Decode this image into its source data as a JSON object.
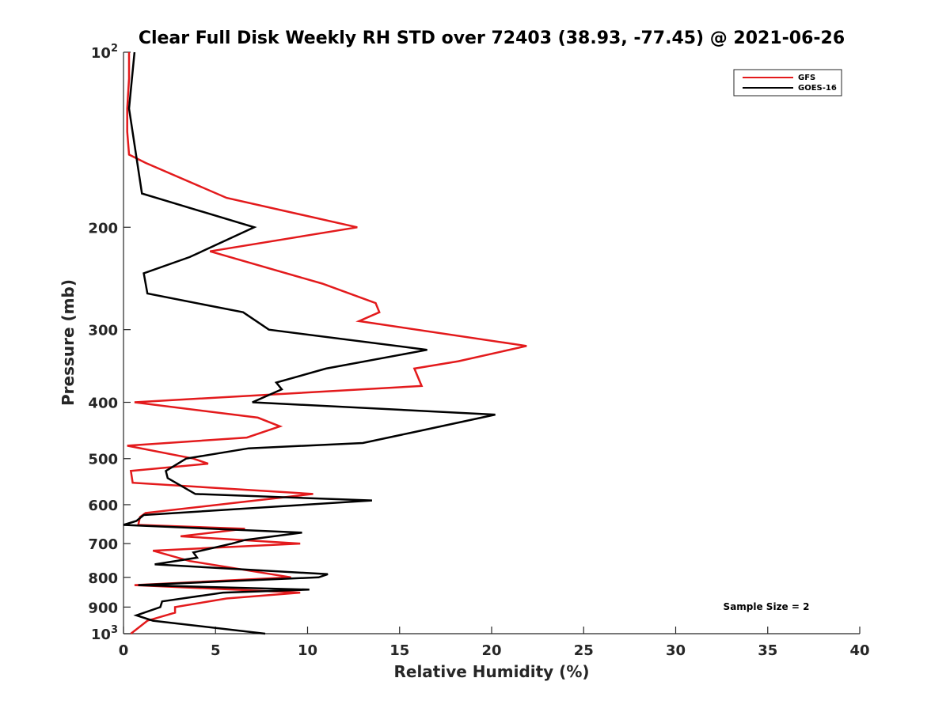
{
  "chart_data": {
    "type": "line",
    "title": "Clear Full Disk Weekly RH STD over 72403 (38.93, -77.45) @ 2021-06-26",
    "xlabel": "Relative Humidity (%)",
    "ylabel": "Pressure (mb)",
    "xlim": [
      0,
      40
    ],
    "ylim": [
      100,
      1000
    ],
    "yscale": "log",
    "y_reversed": true,
    "grid": false,
    "legend_position": "top-right",
    "x_ticks": [
      "0",
      "5",
      "10",
      "15",
      "20",
      "25",
      "30",
      "35",
      "40"
    ],
    "y_ticks": [
      {
        "value": 100,
        "base": "10",
        "exp": "2"
      },
      {
        "value": 200,
        "label": "200"
      },
      {
        "value": 300,
        "label": "300"
      },
      {
        "value": 400,
        "label": "400"
      },
      {
        "value": 500,
        "label": "500"
      },
      {
        "value": 600,
        "label": "600"
      },
      {
        "value": 700,
        "label": "700"
      },
      {
        "value": 800,
        "label": "800"
      },
      {
        "value": 900,
        "label": "900"
      },
      {
        "value": 1000,
        "base": "10",
        "exp": "3"
      }
    ],
    "series": [
      {
        "name": "GFS",
        "color": "#e31a1c",
        "points": [
          [
            0.3,
            100
          ],
          [
            0.3,
            111
          ],
          [
            0.2,
            125
          ],
          [
            0.2,
            137
          ],
          [
            0.3,
            150
          ],
          [
            1.2,
            155
          ],
          [
            5.6,
            178
          ],
          [
            12.7,
            200
          ],
          [
            4.7,
            220
          ],
          [
            10.8,
            250
          ],
          [
            13.7,
            270
          ],
          [
            13.9,
            280
          ],
          [
            12.8,
            290
          ],
          [
            21.9,
            320
          ],
          [
            18.2,
            340
          ],
          [
            15.8,
            350
          ],
          [
            16.2,
            375
          ],
          [
            0.6,
            400
          ],
          [
            7.3,
            425
          ],
          [
            8.5,
            440
          ],
          [
            6.7,
            460
          ],
          [
            0.2,
            475
          ],
          [
            3.8,
            500
          ],
          [
            4.6,
            510
          ],
          [
            0.4,
            525
          ],
          [
            0.5,
            550
          ],
          [
            10.3,
            575
          ],
          [
            1.2,
            620
          ],
          [
            0.9,
            630
          ],
          [
            0.8,
            650
          ],
          [
            6.6,
            660
          ],
          [
            3.1,
            680
          ],
          [
            9.6,
            700
          ],
          [
            1.6,
            720
          ],
          [
            3.6,
            750
          ],
          [
            9.1,
            800
          ],
          [
            0.6,
            825
          ],
          [
            9.6,
            850
          ],
          [
            5.6,
            870
          ],
          [
            2.8,
            900
          ],
          [
            2.8,
            920
          ],
          [
            1.3,
            950
          ],
          [
            0.4,
            1000
          ]
        ]
      },
      {
        "name": "GOES-16",
        "color": "#000000",
        "points": [
          [
            0.6,
            100
          ],
          [
            0.3,
            125
          ],
          [
            1.0,
            175
          ],
          [
            7.1,
            200
          ],
          [
            3.6,
            225
          ],
          [
            1.1,
            240
          ],
          [
            1.3,
            260
          ],
          [
            6.5,
            280
          ],
          [
            7.9,
            300
          ],
          [
            16.5,
            325
          ],
          [
            11.0,
            350
          ],
          [
            8.3,
            370
          ],
          [
            8.6,
            380
          ],
          [
            7.0,
            400
          ],
          [
            20.2,
            420
          ],
          [
            15.8,
            450
          ],
          [
            13.0,
            470
          ],
          [
            6.8,
            480
          ],
          [
            3.4,
            500
          ],
          [
            2.3,
            525
          ],
          [
            2.4,
            540
          ],
          [
            3.9,
            575
          ],
          [
            13.5,
            590
          ],
          [
            1.1,
            625
          ],
          [
            0.7,
            640
          ],
          [
            0.0,
            650
          ],
          [
            9.7,
            670
          ],
          [
            6.6,
            690
          ],
          [
            5.9,
            700
          ],
          [
            3.8,
            725
          ],
          [
            4.0,
            740
          ],
          [
            1.7,
            760
          ],
          [
            11.1,
            790
          ],
          [
            10.6,
            800
          ],
          [
            0.8,
            825
          ],
          [
            10.1,
            840
          ],
          [
            5.4,
            850
          ],
          [
            2.1,
            880
          ],
          [
            2.0,
            900
          ],
          [
            0.7,
            930
          ],
          [
            1.6,
            950
          ],
          [
            7.7,
            1000
          ]
        ]
      }
    ],
    "annotations": [
      {
        "text": "Sample Size = 2"
      }
    ]
  }
}
